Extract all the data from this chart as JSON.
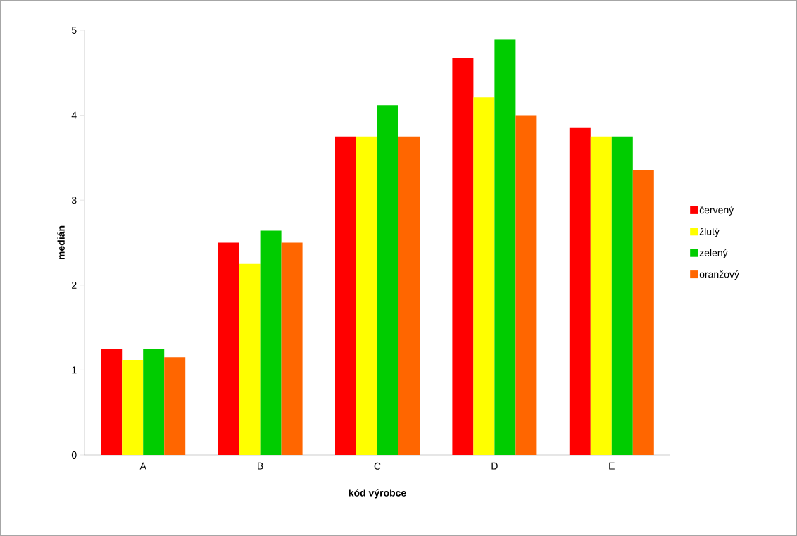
{
  "chart_data": {
    "type": "bar",
    "xlabel": "kód výrobce",
    "ylabel": "medián",
    "categories": [
      "A",
      "B",
      "C",
      "D",
      "E"
    ],
    "series": [
      {
        "name": "červený",
        "color": "#ff0000",
        "values": [
          1.25,
          2.5,
          3.75,
          4.67,
          3.85
        ]
      },
      {
        "name": "žlutý",
        "color": "#ffff00",
        "values": [
          1.12,
          2.25,
          3.75,
          4.21,
          3.75
        ]
      },
      {
        "name": "zelený",
        "color": "#00cc00",
        "values": [
          1.25,
          2.64,
          4.12,
          4.89,
          3.75
        ]
      },
      {
        "name": "oranžový",
        "color": "#ff6600",
        "values": [
          1.15,
          2.5,
          3.75,
          4.0,
          3.35
        ]
      }
    ],
    "ylim": [
      0,
      5
    ],
    "yticks": [
      0,
      1,
      2,
      3,
      4,
      5
    ],
    "legend": "right"
  }
}
